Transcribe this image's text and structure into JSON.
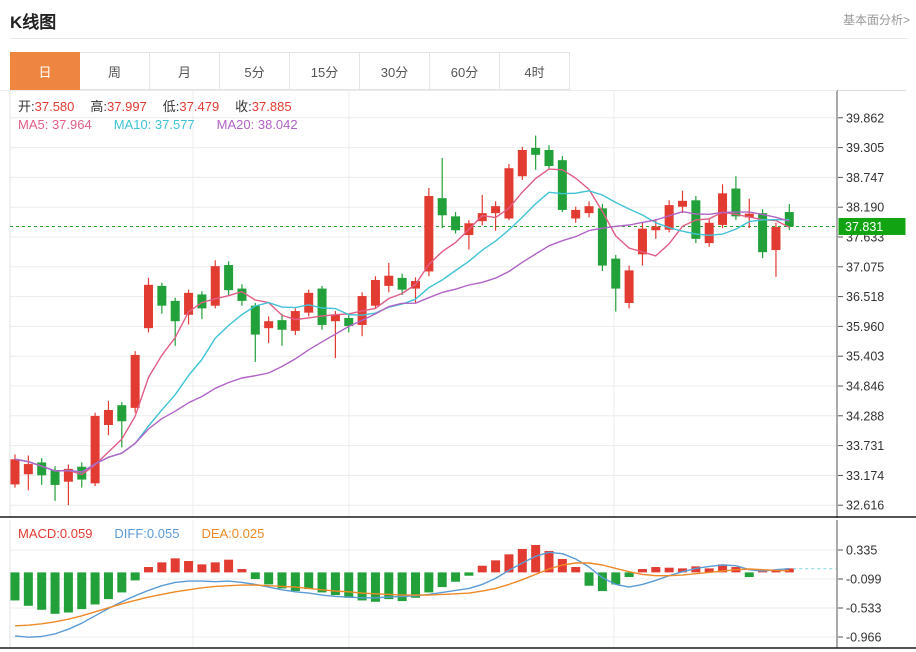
{
  "header": {
    "title": "K线图",
    "link_label": "基本面分析>"
  },
  "tabs": {
    "items": [
      "日",
      "周",
      "月",
      "5分",
      "15分",
      "30分",
      "60分",
      "4时"
    ],
    "active": "日"
  },
  "ohlc_readout": {
    "open_label": "开:",
    "open_value": "37.580",
    "high_label": "高:",
    "high_value": "37.997",
    "low_label": "低:",
    "low_value": "37.479",
    "close_label": "收:",
    "close_value": "37.885"
  },
  "ma_readout": {
    "ma5": "MA5: 37.964",
    "ma10": "MA10: 37.577",
    "ma20": "MA20: 38.042"
  },
  "macd_readout": {
    "macd": "MACD:0.059",
    "diff": "DIFF:0.055",
    "dea": "DEA:0.025"
  },
  "colors": {
    "up": "#e23b32",
    "down": "#22a13a",
    "ma5": "#e25d86",
    "ma10": "#3fc3d6",
    "ma20": "#b163c6",
    "tab_accent": "#ee8540",
    "price_badge": "#11a311",
    "price_line": "#2ca52c",
    "diff_line": "#5b9bd5",
    "dea_line": "#ef8927",
    "grid": "#ececec",
    "axis": "#555",
    "panel_border": "#e3e3e3",
    "separator": "#1a1a1a"
  },
  "chart_data": [
    {
      "type": "candlestick",
      "title": "K线图",
      "timeframe": "日",
      "y_ticks": [
        39.862,
        39.305,
        38.747,
        38.19,
        37.633,
        37.075,
        36.518,
        35.96,
        35.403,
        34.846,
        34.288,
        33.731,
        33.174,
        32.616
      ],
      "current_price": 37.831,
      "current_price_label": "37.831",
      "price_line": 37.831,
      "v_gridlines": [
        193,
        349,
        614
      ],
      "ma_periods": [
        5,
        10,
        20
      ],
      "legend": [
        "MA5",
        "MA10",
        "MA20"
      ],
      "candles": [
        [
          33.01,
          33.57,
          32.95,
          33.48
        ],
        [
          33.2,
          33.55,
          32.9,
          33.39
        ],
        [
          33.42,
          33.5,
          33.0,
          33.18
        ],
        [
          33.28,
          33.35,
          32.7,
          33.0
        ],
        [
          33.06,
          33.38,
          32.62,
          33.3
        ],
        [
          33.34,
          33.42,
          32.95,
          33.1
        ],
        [
          33.03,
          34.35,
          32.98,
          34.29
        ],
        [
          34.12,
          34.57,
          33.93,
          34.4
        ],
        [
          34.49,
          34.55,
          33.7,
          34.19
        ],
        [
          34.44,
          35.5,
          34.35,
          35.43
        ],
        [
          35.93,
          36.87,
          35.85,
          36.74
        ],
        [
          36.72,
          36.78,
          36.2,
          36.35
        ],
        [
          36.44,
          36.5,
          35.6,
          36.06
        ],
        [
          36.18,
          36.65,
          36.0,
          36.59
        ],
        [
          36.56,
          36.62,
          36.1,
          36.3
        ],
        [
          36.35,
          37.2,
          36.3,
          37.09
        ],
        [
          37.11,
          37.18,
          36.55,
          36.64
        ],
        [
          36.67,
          36.75,
          36.35,
          36.44
        ],
        [
          36.35,
          36.4,
          35.3,
          35.81
        ],
        [
          35.93,
          36.15,
          35.65,
          36.06
        ],
        [
          36.08,
          36.2,
          35.6,
          35.9
        ],
        [
          35.88,
          36.3,
          35.8,
          36.25
        ],
        [
          36.22,
          36.65,
          36.15,
          36.59
        ],
        [
          36.67,
          36.72,
          35.9,
          35.99
        ],
        [
          36.06,
          36.25,
          35.37,
          36.18
        ],
        [
          36.12,
          36.2,
          35.85,
          35.97
        ],
        [
          35.99,
          36.6,
          35.78,
          36.53
        ],
        [
          36.35,
          36.9,
          36.3,
          36.83
        ],
        [
          36.72,
          37.15,
          36.6,
          36.91
        ],
        [
          36.87,
          36.95,
          36.55,
          36.65
        ],
        [
          36.67,
          36.88,
          36.4,
          36.81
        ],
        [
          36.99,
          38.55,
          36.9,
          38.4
        ],
        [
          38.36,
          39.11,
          37.8,
          38.04
        ],
        [
          38.02,
          38.1,
          37.7,
          37.76
        ],
        [
          37.67,
          37.95,
          37.4,
          37.89
        ],
        [
          37.93,
          38.42,
          37.85,
          38.08
        ],
        [
          38.08,
          38.3,
          37.75,
          38.21
        ],
        [
          37.98,
          39.0,
          37.95,
          38.92
        ],
        [
          38.77,
          39.32,
          38.7,
          39.26
        ],
        [
          39.3,
          39.53,
          38.89,
          39.17
        ],
        [
          39.26,
          39.35,
          38.9,
          38.96
        ],
        [
          39.07,
          39.15,
          38.1,
          38.14
        ],
        [
          37.98,
          38.2,
          37.9,
          38.14
        ],
        [
          38.08,
          38.3,
          38.0,
          38.21
        ],
        [
          38.17,
          38.25,
          37.0,
          37.1
        ],
        [
          37.23,
          37.3,
          36.24,
          36.67
        ],
        [
          36.4,
          37.1,
          36.3,
          37.01
        ],
        [
          37.31,
          37.9,
          37.1,
          37.79
        ],
        [
          37.76,
          37.97,
          37.6,
          37.83
        ],
        [
          37.77,
          38.32,
          37.72,
          38.23
        ],
        [
          38.2,
          38.5,
          38.08,
          38.31
        ],
        [
          38.32,
          38.4,
          37.52,
          37.6
        ],
        [
          37.52,
          37.97,
          37.45,
          37.9
        ],
        [
          37.86,
          38.62,
          37.8,
          38.45
        ],
        [
          38.54,
          38.77,
          37.95,
          38.02
        ],
        [
          38.0,
          38.35,
          37.8,
          38.07
        ],
        [
          38.08,
          38.15,
          37.24,
          37.35
        ],
        [
          37.39,
          37.9,
          36.89,
          37.82
        ],
        [
          38.1,
          38.25,
          37.76,
          37.83
        ]
      ]
    },
    {
      "type": "macd-histogram",
      "title": "MACD",
      "values_readout": {
        "MACD": 0.059,
        "DIFF": 0.055,
        "DEA": 0.025
      },
      "y_ticks": [
        0.335,
        -0.099,
        -0.533,
        -0.966
      ],
      "v_gridlines": [
        193,
        349,
        614
      ],
      "histogram": [
        -0.42,
        -0.5,
        -0.56,
        -0.62,
        -0.6,
        -0.55,
        -0.48,
        -0.4,
        -0.3,
        -0.12,
        0.08,
        0.15,
        0.21,
        0.17,
        0.12,
        0.15,
        0.19,
        0.05,
        -0.1,
        -0.18,
        -0.24,
        -0.28,
        -0.25,
        -0.3,
        -0.34,
        -0.38,
        -0.42,
        -0.44,
        -0.4,
        -0.43,
        -0.38,
        -0.3,
        -0.22,
        -0.14,
        -0.05,
        0.1,
        0.18,
        0.27,
        0.35,
        0.41,
        0.32,
        0.2,
        0.08,
        -0.2,
        -0.28,
        -0.18,
        -0.07,
        0.05,
        0.08,
        0.07,
        0.06,
        0.09,
        0.06,
        0.12,
        0.08,
        -0.07,
        0.03,
        0.04,
        0.06
      ],
      "diff": [
        -0.95,
        -0.97,
        -0.96,
        -0.92,
        -0.85,
        -0.76,
        -0.65,
        -0.54,
        -0.44,
        -0.35,
        -0.27,
        -0.2,
        -0.15,
        -0.13,
        -0.13,
        -0.14,
        -0.13,
        -0.15,
        -0.18,
        -0.22,
        -0.26,
        -0.29,
        -0.31,
        -0.34,
        -0.36,
        -0.37,
        -0.38,
        -0.38,
        -0.37,
        -0.36,
        -0.35,
        -0.33,
        -0.3,
        -0.27,
        -0.24,
        -0.18,
        -0.09,
        0.03,
        0.14,
        0.24,
        0.3,
        0.28,
        0.2,
        0.08,
        -0.08,
        -0.18,
        -0.22,
        -0.18,
        -0.12,
        -0.05,
        0.01,
        0.06,
        0.09,
        0.11,
        0.1,
        0.04,
        0.02,
        0.04,
        0.055
      ],
      "dea": [
        -0.8,
        -0.79,
        -0.77,
        -0.74,
        -0.7,
        -0.65,
        -0.59,
        -0.53,
        -0.47,
        -0.42,
        -0.37,
        -0.33,
        -0.29,
        -0.26,
        -0.23,
        -0.21,
        -0.2,
        -0.19,
        -0.19,
        -0.2,
        -0.21,
        -0.22,
        -0.24,
        -0.26,
        -0.28,
        -0.29,
        -0.31,
        -0.32,
        -0.33,
        -0.34,
        -0.34,
        -0.34,
        -0.33,
        -0.32,
        -0.31,
        -0.28,
        -0.24,
        -0.18,
        -0.11,
        -0.03,
        0.05,
        0.11,
        0.14,
        0.14,
        0.11,
        0.06,
        0.01,
        -0.03,
        -0.05,
        -0.05,
        -0.04,
        -0.02,
        0.0,
        0.02,
        0.04,
        0.05,
        0.04,
        0.03,
        0.025
      ]
    }
  ]
}
